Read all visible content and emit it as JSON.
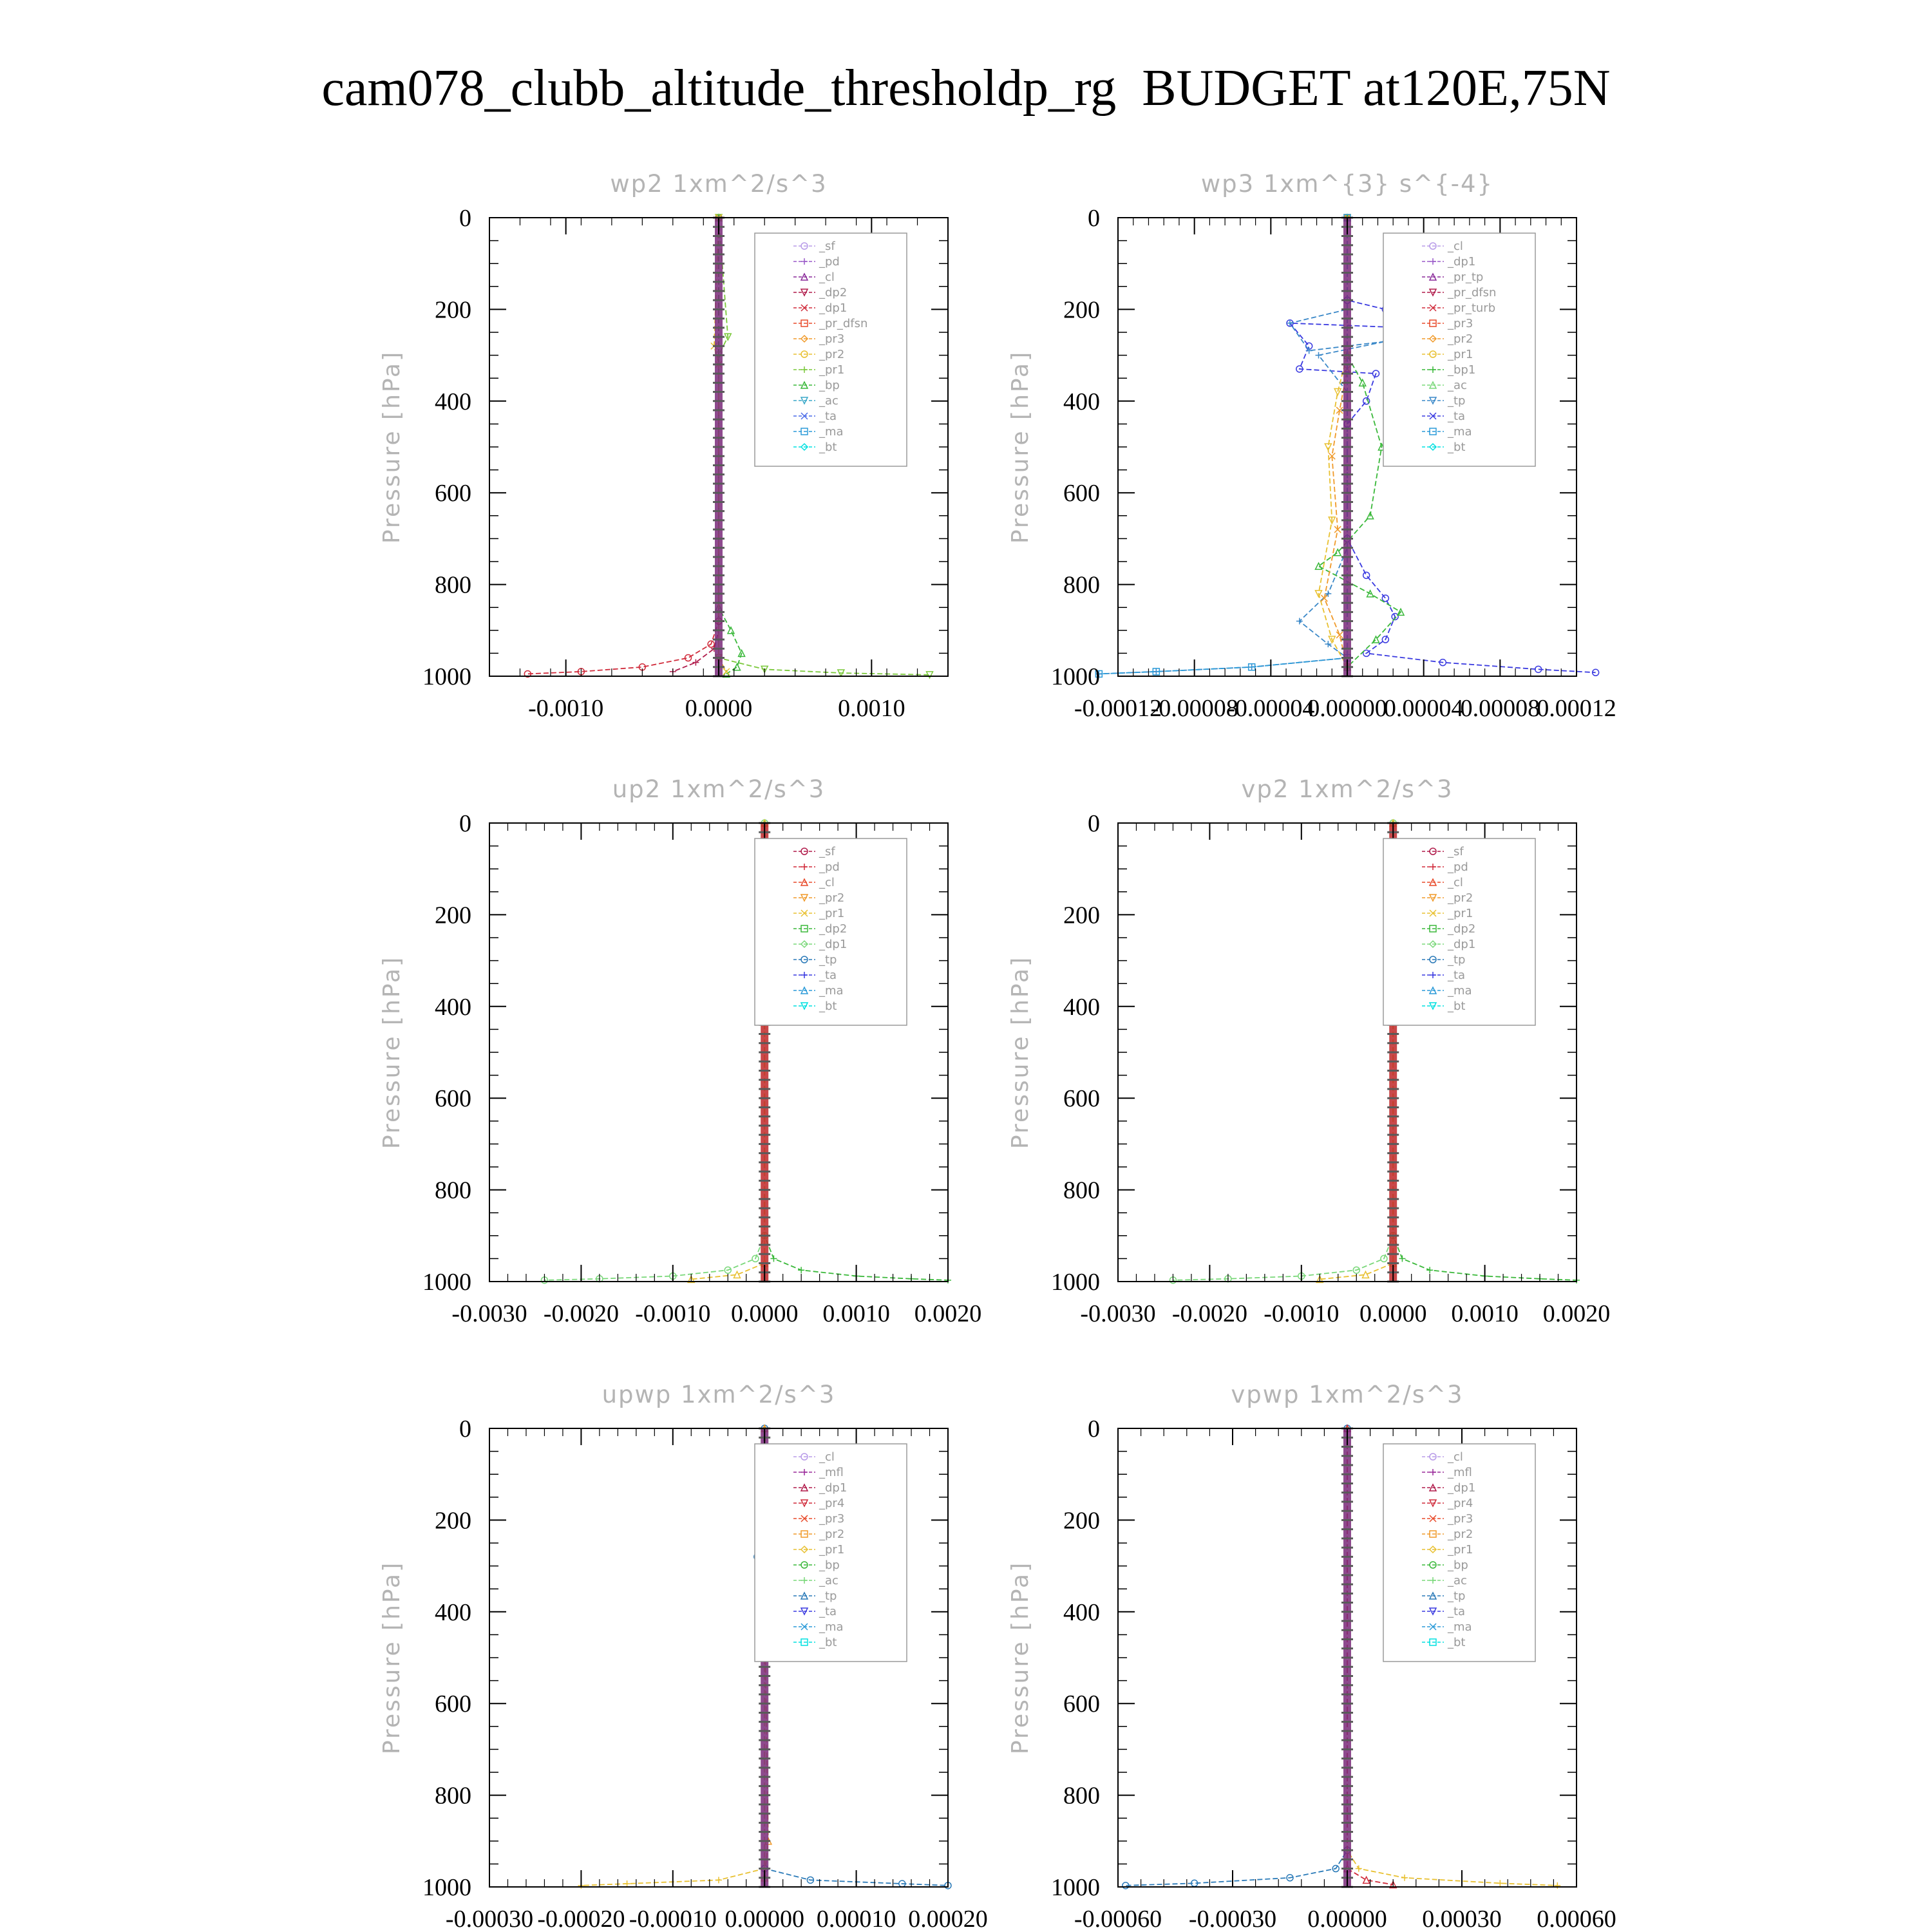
{
  "title": "cam078_clubb_altitude_thresholdp_rg  BUDGET at120E,75N",
  "chart_data": [
    {
      "type": "line",
      "title": "wp2   1xm^2/s^3",
      "ylabel": "Pressure [hPa]",
      "xlim": [
        -0.0015,
        0.0015
      ],
      "ylim": [
        1000,
        0
      ],
      "xticks": [
        "-0.0010",
        "0.0000",
        "0.0010"
      ],
      "xtick_values": [
        -0.001,
        0.0,
        0.001
      ],
      "yticks": [
        "0",
        "200",
        "400",
        "600",
        "800",
        "1000"
      ],
      "grid": false,
      "legend_position": "top-right",
      "series": [
        {
          "name": "_sf",
          "color": "#b89be8"
        },
        {
          "name": "_pd",
          "color": "#9a5ac8"
        },
        {
          "name": "_cl",
          "color": "#8a2a9a"
        },
        {
          "name": "_dp2",
          "color": "#b01a4a"
        },
        {
          "name": "_dp1",
          "color": "#d02a3a"
        },
        {
          "name": "_pr_dfsn",
          "color": "#e84a2a"
        },
        {
          "name": "_pr3",
          "color": "#f09a2a"
        },
        {
          "name": "_pr2",
          "color": "#e8c030"
        },
        {
          "name": "_pr1",
          "color": "#7ac83a"
        },
        {
          "name": "_bp",
          "color": "#3ab83a"
        },
        {
          "name": "_ac",
          "color": "#3aa8c8"
        },
        {
          "name": "_ta",
          "color": "#4a6ae8"
        },
        {
          "name": "_ma",
          "color": "#2a9ad8"
        },
        {
          "name": "_bt",
          "color": "#00e0e0"
        }
      ],
      "curves": [
        {
          "series": "_dp1",
          "x": [
            0,
            0,
            -5e-05,
            -0.0002,
            -0.0005,
            -0.0009,
            -0.00125
          ],
          "y": [
            0,
            880,
            930,
            960,
            980,
            990,
            995
          ]
        },
        {
          "series": "_dp2",
          "x": [
            0,
            0,
            -3e-05,
            -0.00015,
            -0.0003
          ],
          "y": [
            0,
            900,
            940,
            970,
            990
          ]
        },
        {
          "series": "_bp",
          "x": [
            0,
            0,
            8e-05,
            0.00015,
            0.00012,
            5e-05
          ],
          "y": [
            0,
            850,
            900,
            950,
            980,
            995
          ]
        },
        {
          "series": "_pr1",
          "x": [
            0,
            6e-05,
            0,
            0,
            0.0003,
            0.0008,
            0.00138
          ],
          "y": [
            0,
            260,
            300,
            960,
            985,
            993,
            997
          ]
        },
        {
          "series": "_pr2",
          "x": [
            0,
            -3e-05,
            0,
            0,
            5e-05
          ],
          "y": [
            0,
            280,
            320,
            960,
            990
          ]
        }
      ]
    },
    {
      "type": "line",
      "title": "wp3   1xm^{3} s^{-4}",
      "ylabel": "Pressure [hPa]",
      "xlim": [
        -0.00012,
        0.00012
      ],
      "ylim": [
        1000,
        0
      ],
      "xticks": [
        "-0.00012",
        "-0.00008",
        "-0.00004",
        "0.00000",
        "0.00004",
        "0.00008",
        "0.00012"
      ],
      "xtick_values": [
        -0.00012,
        -8e-05,
        -4e-05,
        0.0,
        4e-05,
        8e-05,
        0.00012
      ],
      "yticks": [
        "0",
        "200",
        "400",
        "600",
        "800",
        "1000"
      ],
      "grid": false,
      "legend_position": "top-right",
      "series": [
        {
          "name": "_cl",
          "color": "#b89be8"
        },
        {
          "name": "_dp1",
          "color": "#9a5ac8"
        },
        {
          "name": "_pr_tp",
          "color": "#8a2a9a"
        },
        {
          "name": "_pr_dfsn",
          "color": "#b01a4a"
        },
        {
          "name": "_pr_turb",
          "color": "#d02a3a"
        },
        {
          "name": "_pr3",
          "color": "#e84a2a"
        },
        {
          "name": "_pr2",
          "color": "#f09a2a"
        },
        {
          "name": "_pr1",
          "color": "#e8c030"
        },
        {
          "name": "_bp1",
          "color": "#3ab83a"
        },
        {
          "name": "_ac",
          "color": "#7ad87a"
        },
        {
          "name": "_tp",
          "color": "#3a88c8"
        },
        {
          "name": "_ta",
          "color": "#3a3ae0"
        },
        {
          "name": "_ma",
          "color": "#2a9ad8"
        },
        {
          "name": "_bt",
          "color": "#00e0e0"
        }
      ],
      "curves": [
        {
          "series": "_ta",
          "x": [
            0,
            0,
            2e-05,
            3e-05,
            -3e-05,
            -2e-05,
            -2.5e-05,
            1.5e-05,
            1e-05,
            0,
            0,
            1e-05,
            2e-05,
            2.5e-05,
            2e-05,
            1e-05,
            5e-05,
            0.0001,
            0.00013
          ],
          "y": [
            0,
            180,
            200,
            240,
            230,
            280,
            330,
            340,
            400,
            450,
            700,
            780,
            830,
            870,
            920,
            950,
            970,
            985,
            992
          ]
        },
        {
          "series": "_tp",
          "x": [
            0,
            0,
            -3e-05,
            -2e-05,
            2e-05,
            -1.5e-05,
            0,
            0,
            -1e-05,
            -2.5e-05,
            -1e-05,
            0,
            -5e-05,
            -0.0001,
            -0.00013
          ],
          "y": [
            0,
            200,
            230,
            290,
            270,
            300,
            380,
            720,
            820,
            880,
            930,
            960,
            980,
            990,
            995
          ]
        },
        {
          "series": "_bp1",
          "x": [
            0,
            0,
            8e-06,
            1.8e-05,
            1.2e-05,
            -5e-06,
            -1.5e-05,
            1.2e-05,
            2.8e-05,
            1.5e-05,
            0
          ],
          "y": [
            0,
            300,
            360,
            500,
            650,
            730,
            760,
            820,
            860,
            920,
            980
          ]
        },
        {
          "series": "_pr1",
          "x": [
            0,
            0,
            -5e-06,
            -1e-05,
            -8e-06,
            -1.5e-05,
            -8e-06,
            0
          ],
          "y": [
            0,
            300,
            380,
            500,
            660,
            820,
            920,
            980
          ]
        },
        {
          "series": "_pr2",
          "x": [
            0,
            0,
            -4e-06,
            -8e-06,
            -5e-06,
            -1.2e-05,
            -4e-06,
            0
          ],
          "y": [
            0,
            330,
            420,
            520,
            680,
            830,
            910,
            980
          ]
        },
        {
          "series": "_ma",
          "x": [
            0,
            0,
            -5e-05,
            -0.0001,
            -0.00013
          ],
          "y": [
            0,
            960,
            980,
            990,
            995
          ]
        }
      ]
    },
    {
      "type": "line",
      "title": "up2   1xm^2/s^3",
      "ylabel": "Pressure [hPa]",
      "xlim": [
        -0.003,
        0.002
      ],
      "ylim": [
        1000,
        0
      ],
      "xticks": [
        "-0.0030",
        "-0.0020",
        "-0.0010",
        "0.0000",
        "0.0010",
        "0.0020"
      ],
      "xtick_values": [
        -0.003,
        -0.002,
        -0.001,
        0.0,
        0.001,
        0.002
      ],
      "yticks": [
        "0",
        "200",
        "400",
        "600",
        "800",
        "1000"
      ],
      "grid": false,
      "legend_position": "top-right",
      "series": [
        {
          "name": "_sf",
          "color": "#b01a4a"
        },
        {
          "name": "_pd",
          "color": "#d02a3a"
        },
        {
          "name": "_cl",
          "color": "#e84a2a"
        },
        {
          "name": "_pr2",
          "color": "#f09a2a"
        },
        {
          "name": "_pr1",
          "color": "#e8c030"
        },
        {
          "name": "_dp2",
          "color": "#3ab83a"
        },
        {
          "name": "_dp1",
          "color": "#7ad87a"
        },
        {
          "name": "_tp",
          "color": "#2a7ab8"
        },
        {
          "name": "_ta",
          "color": "#3a3ae0"
        },
        {
          "name": "_ma",
          "color": "#2a9ad8"
        },
        {
          "name": "_bt",
          "color": "#00e0e0"
        }
      ],
      "curves": [
        {
          "series": "_dp1",
          "x": [
            0,
            0,
            -0.0001,
            -0.0004,
            -0.001,
            -0.0018,
            -0.0024
          ],
          "y": [
            0,
            900,
            950,
            975,
            988,
            994,
            997
          ]
        },
        {
          "series": "_dp2",
          "x": [
            0,
            0,
            0.0001,
            0.0004,
            0.001,
            0.0016,
            0.002
          ],
          "y": [
            0,
            900,
            950,
            975,
            988,
            994,
            997
          ]
        },
        {
          "series": "_pr1",
          "x": [
            0,
            0,
            -0.0003,
            -0.0008
          ],
          "y": [
            0,
            960,
            985,
            995
          ]
        }
      ]
    },
    {
      "type": "line",
      "title": "vp2   1xm^2/s^3",
      "ylabel": "Pressure [hPa]",
      "xlim": [
        -0.003,
        0.002
      ],
      "ylim": [
        1000,
        0
      ],
      "xticks": [
        "-0.0030",
        "-0.0020",
        "-0.0010",
        "0.0000",
        "0.0010",
        "0.0020"
      ],
      "xtick_values": [
        -0.003,
        -0.002,
        -0.001,
        0.0,
        0.001,
        0.002
      ],
      "yticks": [
        "0",
        "200",
        "400",
        "600",
        "800",
        "1000"
      ],
      "grid": false,
      "legend_position": "top-right",
      "series": [
        {
          "name": "_sf",
          "color": "#b01a4a"
        },
        {
          "name": "_pd",
          "color": "#d02a3a"
        },
        {
          "name": "_cl",
          "color": "#e84a2a"
        },
        {
          "name": "_pr2",
          "color": "#f09a2a"
        },
        {
          "name": "_pr1",
          "color": "#e8c030"
        },
        {
          "name": "_dp2",
          "color": "#3ab83a"
        },
        {
          "name": "_dp1",
          "color": "#7ad87a"
        },
        {
          "name": "_tp",
          "color": "#2a7ab8"
        },
        {
          "name": "_ta",
          "color": "#3a3ae0"
        },
        {
          "name": "_ma",
          "color": "#2a9ad8"
        },
        {
          "name": "_bt",
          "color": "#00e0e0"
        }
      ],
      "curves": [
        {
          "series": "_dp1",
          "x": [
            0,
            0,
            -0.0001,
            -0.0004,
            -0.001,
            -0.0018,
            -0.0024
          ],
          "y": [
            0,
            900,
            950,
            975,
            988,
            994,
            997
          ]
        },
        {
          "series": "_dp2",
          "x": [
            0,
            0,
            0.0001,
            0.0004,
            0.001,
            0.0016,
            0.002
          ],
          "y": [
            0,
            900,
            950,
            975,
            988,
            994,
            997
          ]
        },
        {
          "series": "_pr1",
          "x": [
            0,
            0,
            -0.0003,
            -0.0008
          ],
          "y": [
            0,
            960,
            985,
            995
          ]
        }
      ]
    },
    {
      "type": "line",
      "title": "upwp   1xm^2/s^3",
      "ylabel": "Pressure [hPa]",
      "xlim": [
        -0.0003,
        0.0002
      ],
      "ylim": [
        1000,
        0
      ],
      "xticks": [
        "-0.00030",
        "-0.00020",
        "-0.00010",
        "0.00000",
        "0.00010",
        "0.00020"
      ],
      "xtick_values": [
        -0.0003,
        -0.0002,
        -0.0001,
        0.0,
        0.0001,
        0.0002
      ],
      "yticks": [
        "0",
        "200",
        "400",
        "600",
        "800",
        "1000"
      ],
      "grid": false,
      "legend_position": "top-right",
      "series": [
        {
          "name": "_cl",
          "color": "#b89be8"
        },
        {
          "name": "_mfl",
          "color": "#9a2a9a"
        },
        {
          "name": "_dp1",
          "color": "#b01a4a"
        },
        {
          "name": "_pr4",
          "color": "#d02a3a"
        },
        {
          "name": "_pr3",
          "color": "#e84a2a"
        },
        {
          "name": "_pr2",
          "color": "#f09a2a"
        },
        {
          "name": "_pr1",
          "color": "#e8c030"
        },
        {
          "name": "_bp",
          "color": "#3ab83a"
        },
        {
          "name": "_ac",
          "color": "#7ad87a"
        },
        {
          "name": "_tp",
          "color": "#2a7ab8"
        },
        {
          "name": "_ta",
          "color": "#3a3ae0"
        },
        {
          "name": "_ma",
          "color": "#2a9ad8"
        },
        {
          "name": "_bt",
          "color": "#00e0e0"
        }
      ],
      "curves": [
        {
          "series": "_tp",
          "x": [
            0,
            -8e-06,
            0,
            0,
            5e-05,
            0.00015,
            0.0002
          ],
          "y": [
            0,
            280,
            340,
            960,
            985,
            993,
            997
          ]
        },
        {
          "series": "_pr1",
          "x": [
            0,
            8e-06,
            0,
            0,
            -5e-05,
            -0.00015,
            -0.0002
          ],
          "y": [
            0,
            280,
            340,
            960,
            985,
            993,
            997
          ]
        },
        {
          "series": "_pr2",
          "x": [
            0,
            5e-06,
            0,
            4e-06,
            0
          ],
          "y": [
            0,
            300,
            400,
            900,
            980
          ]
        }
      ]
    },
    {
      "type": "line",
      "title": "vpwp   1xm^2/s^3",
      "ylabel": "Pressure [hPa]",
      "xlim": [
        -0.0006,
        0.0006
      ],
      "ylim": [
        1000,
        0
      ],
      "xticks": [
        "-0.00060",
        "-0.00030",
        "0.00000",
        "0.00030",
        "0.00060"
      ],
      "xtick_values": [
        -0.0006,
        -0.0003,
        0.0,
        0.0003,
        0.0006
      ],
      "yticks": [
        "0",
        "200",
        "400",
        "600",
        "800",
        "1000"
      ],
      "grid": false,
      "legend_position": "top-right",
      "series": [
        {
          "name": "_cl",
          "color": "#b89be8"
        },
        {
          "name": "_mfl",
          "color": "#9a2a9a"
        },
        {
          "name": "_dp1",
          "color": "#b01a4a"
        },
        {
          "name": "_pr4",
          "color": "#d02a3a"
        },
        {
          "name": "_pr3",
          "color": "#e84a2a"
        },
        {
          "name": "_pr2",
          "color": "#f09a2a"
        },
        {
          "name": "_pr1",
          "color": "#e8c030"
        },
        {
          "name": "_bp",
          "color": "#3ab83a"
        },
        {
          "name": "_ac",
          "color": "#7ad87a"
        },
        {
          "name": "_tp",
          "color": "#2a7ab8"
        },
        {
          "name": "_ta",
          "color": "#3a3ae0"
        },
        {
          "name": "_ma",
          "color": "#2a9ad8"
        },
        {
          "name": "_bt",
          "color": "#00e0e0"
        }
      ],
      "curves": [
        {
          "series": "_tp",
          "x": [
            0,
            0,
            -3e-05,
            -0.00015,
            -0.0004,
            -0.00058
          ],
          "y": [
            0,
            920,
            960,
            980,
            992,
            997
          ]
        },
        {
          "series": "_pr1",
          "x": [
            0,
            0,
            3e-05,
            0.00015,
            0.0004,
            0.00055
          ],
          "y": [
            0,
            920,
            960,
            980,
            992,
            997
          ]
        },
        {
          "series": "_pr4",
          "x": [
            0,
            0,
            5e-05,
            0.00012
          ],
          "y": [
            0,
            960,
            985,
            995
          ]
        }
      ]
    }
  ]
}
